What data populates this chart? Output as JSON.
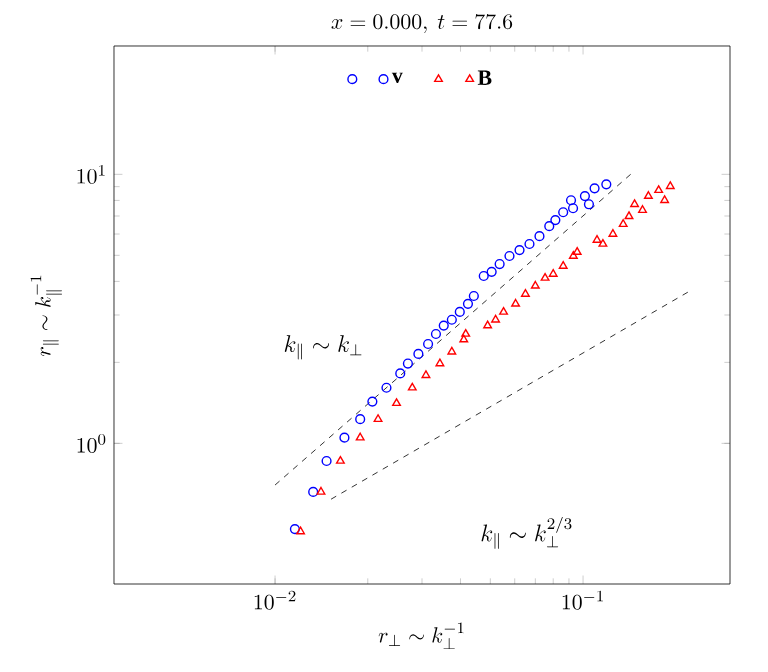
{
  "chart_data": {
    "type": "scatter",
    "title": "x = 0.000,\\ t = 77.6",
    "xlabel": "r_\\perp \\sim k_\\perp^{-1}",
    "ylabel": "r_\\parallel \\sim k_\\parallel^{-1}",
    "log": "xy",
    "grid": false,
    "legend": "top",
    "xlim": [
      0.003,
      0.3
    ],
    "ylim": [
      0.3,
      30
    ],
    "xticks": [
      {
        "value": 0.01,
        "label": "10^{-2}"
      },
      {
        "value": 0.1,
        "label": "10^{-1}"
      }
    ],
    "yticks": [
      {
        "value": 1,
        "label": "10^{0}"
      },
      {
        "value": 10,
        "label": "10^{1}"
      }
    ],
    "series": [
      {
        "name": "\\mathbf{v}",
        "color": "#0000ff",
        "marker": "circle",
        "x": [
          0.0116,
          0.0133,
          0.0147,
          0.0168,
          0.0189,
          0.0207,
          0.023,
          0.0255,
          0.027,
          0.0292,
          0.0314,
          0.0333,
          0.0353,
          0.0375,
          0.0398,
          0.0423,
          0.0442,
          0.0476,
          0.0505,
          0.0536,
          0.0577,
          0.0622,
          0.067,
          0.0722,
          0.0777,
          0.0813,
          0.0862,
          0.0914,
          0.0928,
          0.1014,
          0.1045,
          0.109,
          0.119
        ],
        "values": [
          0.48,
          0.66,
          0.86,
          1.05,
          1.23,
          1.43,
          1.61,
          1.82,
          1.98,
          2.15,
          2.34,
          2.55,
          2.74,
          2.88,
          3.08,
          3.3,
          3.53,
          4.19,
          4.34,
          4.64,
          4.97,
          5.23,
          5.51,
          5.89,
          6.42,
          6.76,
          7.23,
          8.01,
          7.48,
          8.3,
          7.74,
          8.87,
          9.18
        ]
      },
      {
        "name": "\\mathbf{B}",
        "color": "#ff0000",
        "marker": "triangle",
        "x": [
          0.0121,
          0.0141,
          0.0163,
          0.0189,
          0.0216,
          0.0248,
          0.0279,
          0.0309,
          0.0343,
          0.0375,
          0.041,
          0.0416,
          0.049,
          0.052,
          0.0552,
          0.0604,
          0.065,
          0.07,
          0.0753,
          0.08,
          0.0862,
          0.093,
          0.0957,
          0.111,
          0.116,
          0.125,
          0.135,
          0.141,
          0.147,
          0.156,
          0.163,
          0.176,
          0.184,
          0.192
        ],
        "values": [
          0.47,
          0.66,
          0.86,
          1.05,
          1.23,
          1.41,
          1.61,
          1.79,
          1.98,
          2.19,
          2.43,
          2.55,
          2.74,
          2.88,
          3.08,
          3.3,
          3.59,
          3.85,
          4.12,
          4.26,
          4.56,
          4.97,
          5.14,
          5.7,
          5.51,
          6.0,
          6.53,
          6.98,
          7.74,
          7.36,
          8.3,
          8.73,
          8.01,
          9.03
        ]
      },
      {
        "type": "line",
        "color": "#000000",
        "line_style": "dashed",
        "marker": "none",
        "x": [
          0.01,
          0.147
        ],
        "values": [
          0.7,
          10.3
        ]
      },
      {
        "type": "line",
        "color": "#000000",
        "line_style": "dashed",
        "marker": "none",
        "x": [
          0.0152,
          0.22
        ],
        "values": [
          0.62,
          3.66
        ]
      }
    ],
    "annotations": [
      "k_\\parallel \\sim k_\\perp",
      "k_\\parallel \\sim k_\\perp^{2/3}"
    ]
  }
}
